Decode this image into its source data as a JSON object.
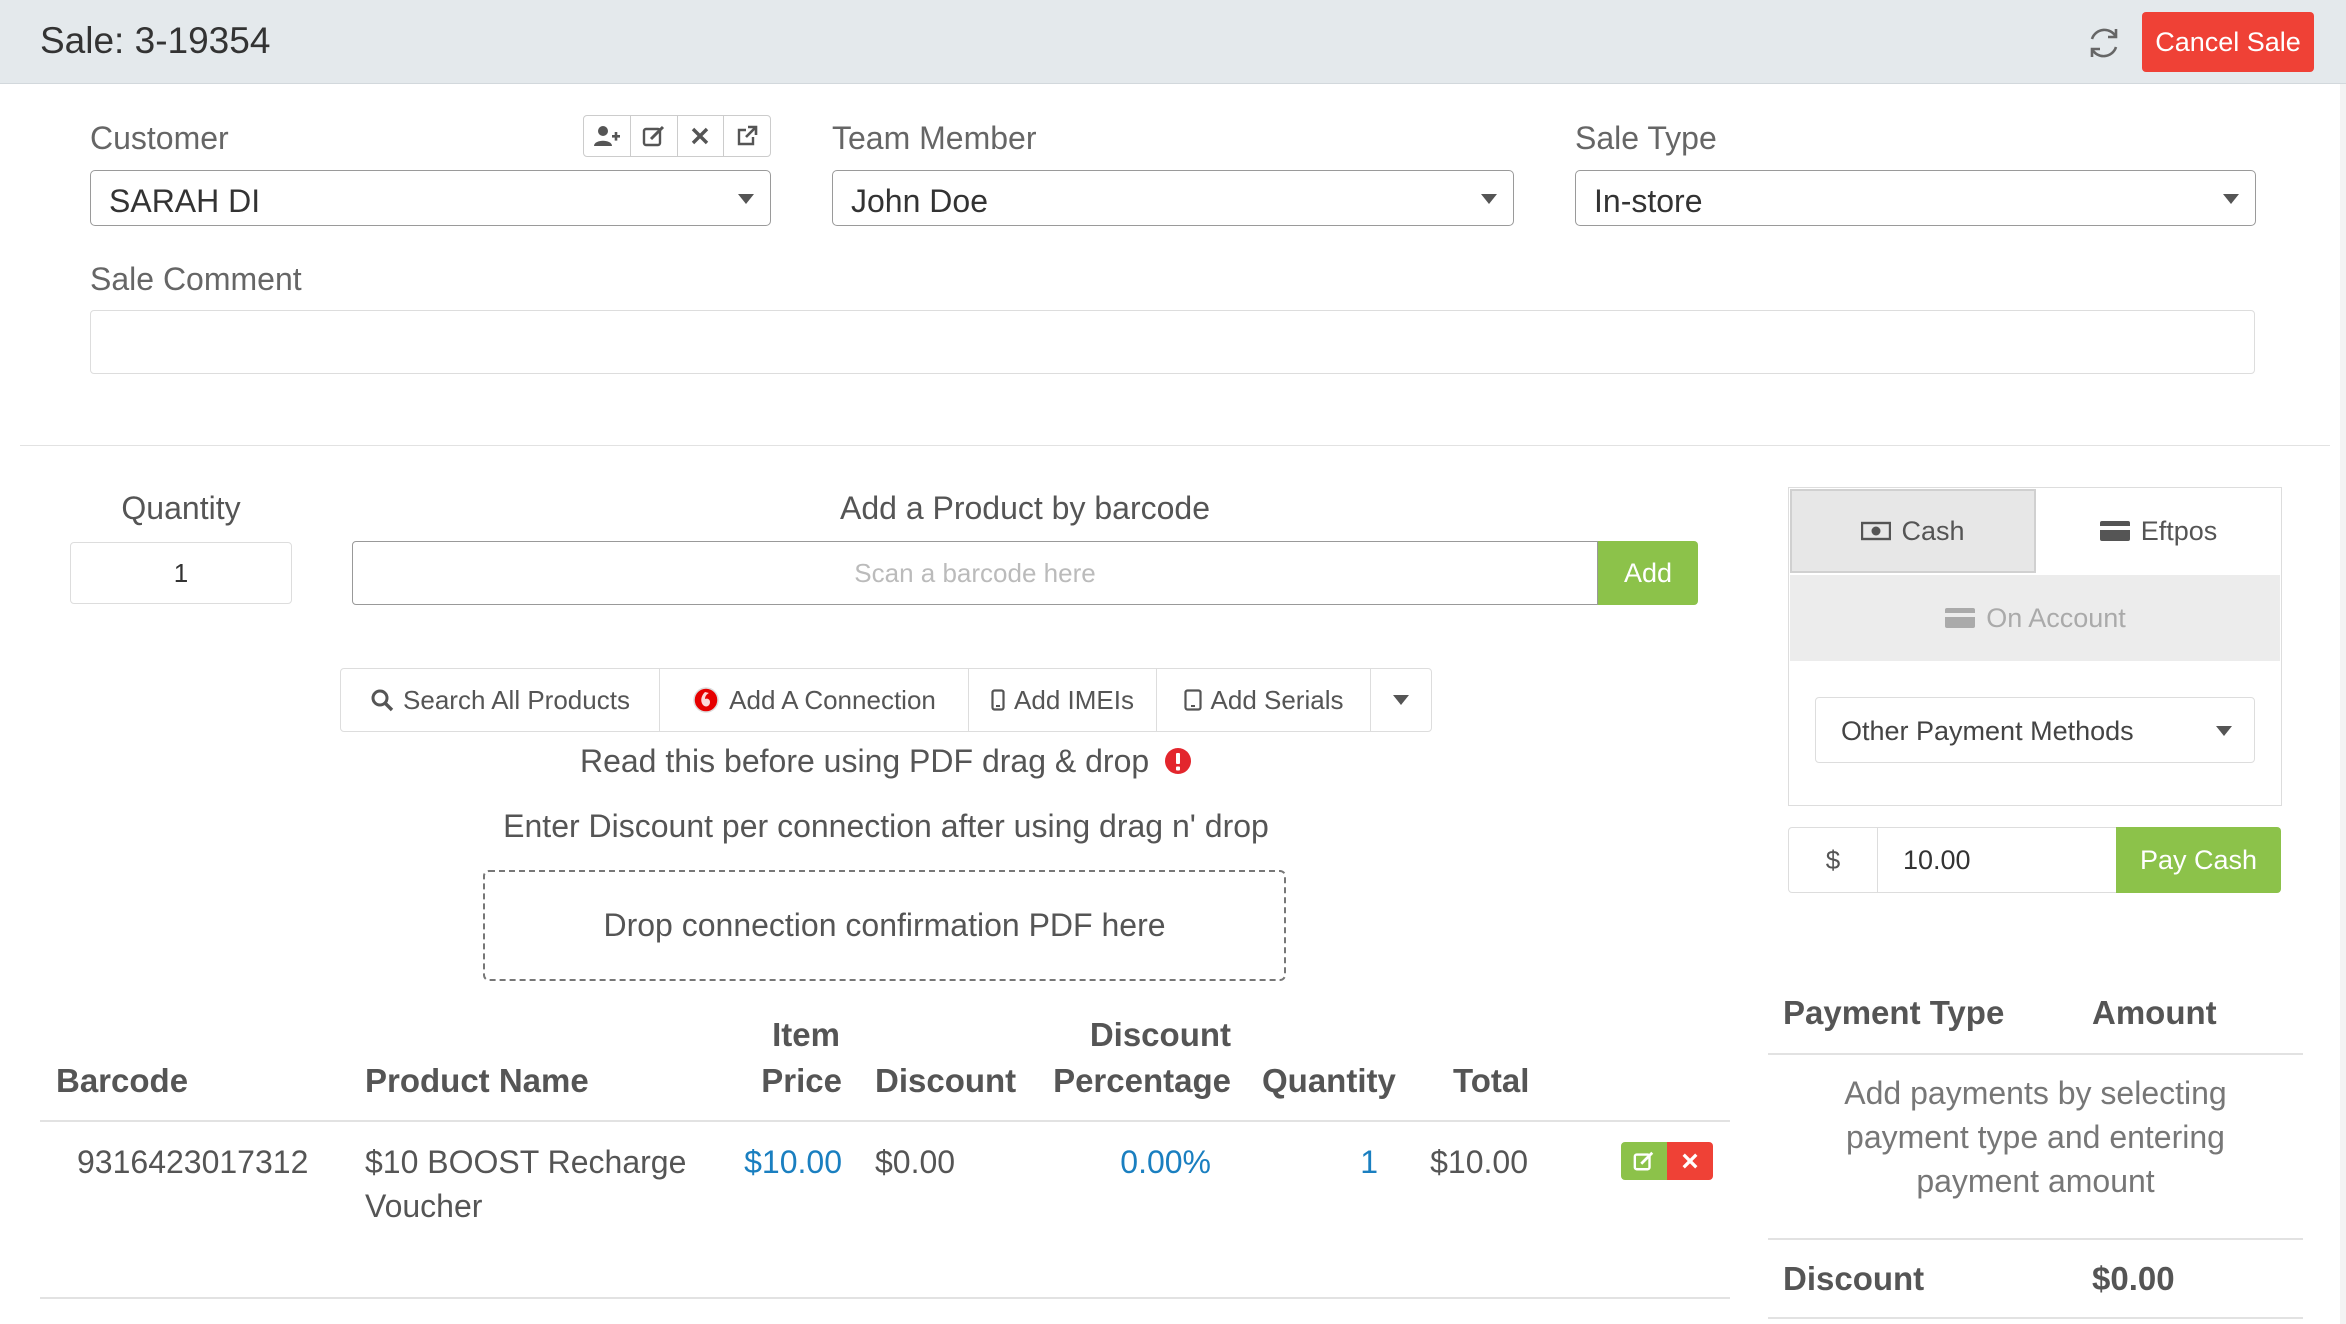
{
  "header": {
    "title": "Sale: 3-19354",
    "cancel_label": "Cancel Sale"
  },
  "customer": {
    "label": "Customer",
    "value": "SARAH DI"
  },
  "team_member": {
    "label": "Team Member",
    "value": "John Doe"
  },
  "sale_type": {
    "label": "Sale Type",
    "value": "In-store"
  },
  "sale_comment": {
    "label": "Sale Comment",
    "value": ""
  },
  "quantity": {
    "label": "Quantity",
    "value": "1"
  },
  "barcode": {
    "label": "Add a Product by barcode",
    "placeholder": "Scan a barcode here",
    "add_label": "Add"
  },
  "actions": {
    "search_all": "Search All Products",
    "add_connection": "Add A Connection",
    "add_imeis": "Add IMEIs",
    "add_serials": "Add Serials"
  },
  "pdf_notice": "Read this before using PDF drag & drop",
  "discount_notice": "Enter Discount per connection after using drag n' drop",
  "dropzone_text": "Drop connection confirmation PDF here",
  "table": {
    "headers": {
      "barcode": "Barcode",
      "product_name": "Product Name",
      "item_price_line1": "Item",
      "item_price_line2": "Price",
      "discount": "Discount",
      "discount_pct_line1": "Discount",
      "discount_pct_line2": "Percentage",
      "quantity": "Quantity",
      "total": "Total"
    },
    "rows": [
      {
        "barcode": "9316423017312",
        "name_line1": "$10 BOOST Recharge",
        "name_line2": "Voucher",
        "price": "$10.00",
        "discount": "$0.00",
        "discount_pct": "0.00%",
        "quantity": "1",
        "total": "$10.00"
      }
    ]
  },
  "payment": {
    "tabs": {
      "cash": "Cash",
      "eftpos": "Eftpos",
      "on_account": "On Account"
    },
    "other_methods": "Other Payment Methods",
    "currency": "$",
    "amount": "10.00",
    "pay_label": "Pay Cash",
    "summary": {
      "type_header": "Payment Type",
      "amount_header": "Amount",
      "empty_line1": "Add payments by selecting",
      "empty_line2": "payment type and entering",
      "empty_line3": "payment amount",
      "discount_label": "Discount",
      "discount_value": "$0.00"
    }
  },
  "colors": {
    "primary_green": "#8cc24a",
    "danger_red": "#ef4136",
    "link_blue": "#1a7fc0"
  }
}
